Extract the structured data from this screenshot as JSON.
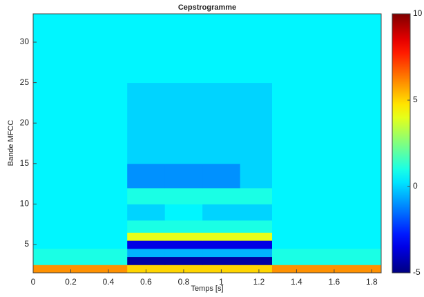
{
  "chart_data": {
    "type": "heatmap",
    "title": "Cepstrogramme",
    "xlabel": "Temps [s]",
    "ylabel": "Bande MFCC",
    "xbins": [
      0,
      0.5,
      0.7,
      0.9,
      1.1,
      1.27,
      1.85
    ],
    "ybins": [
      1.5,
      2.5,
      3.5,
      4.5,
      5.5,
      6.5,
      8,
      10,
      12,
      15,
      20,
      25,
      33.5
    ],
    "values": [
      [
        6,
        5,
        5,
        5,
        5,
        6
      ],
      [
        1,
        -4.5,
        -4.5,
        -4.5,
        -4.5,
        1
      ],
      [
        1,
        -0.5,
        -0.5,
        -0.5,
        -0.5,
        1
      ],
      [
        0.5,
        -3.5,
        -3.5,
        -3.5,
        -3.5,
        0.5
      ],
      [
        0.5,
        4,
        4,
        4,
        4,
        0.5
      ],
      [
        0.5,
        1,
        1,
        1,
        1,
        0.5
      ],
      [
        0.5,
        0,
        0.5,
        0,
        0,
        0.5
      ],
      [
        0.5,
        1,
        1,
        1,
        1,
        0.5
      ],
      [
        0.5,
        -1,
        -1,
        -1,
        0,
        0.5
      ],
      [
        0.5,
        0,
        0,
        0,
        0,
        0.5
      ],
      [
        0.5,
        0,
        0,
        0,
        0,
        0.5
      ],
      [
        0.5,
        0.5,
        0.5,
        0.5,
        0.5,
        0.5
      ]
    ],
    "xlim": [
      0,
      1.85
    ],
    "xticks": [
      0,
      0.2,
      0.4,
      0.6,
      0.8,
      1,
      1.2,
      1.4,
      1.6,
      1.8
    ],
    "ylim": [
      1.5,
      33.5
    ],
    "yticks": [
      5,
      10,
      15,
      20,
      25,
      30
    ],
    "clim": [
      -5,
      10
    ],
    "cticks": [
      -5,
      0,
      5,
      10
    ],
    "colormap": "jet"
  }
}
